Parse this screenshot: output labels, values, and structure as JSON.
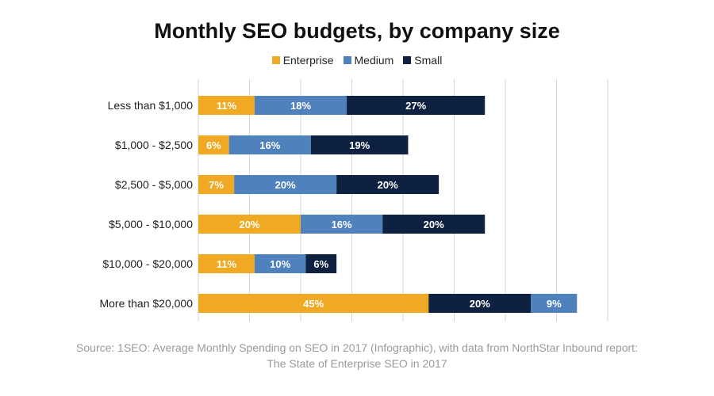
{
  "chart_data": {
    "type": "bar",
    "orientation": "horizontal",
    "stacked": true,
    "title": "Monthly SEO budgets, by company size",
    "legend": [
      {
        "name": "Enterprise",
        "color": "#EFA922"
      },
      {
        "name": "Medium",
        "color": "#4F81BD"
      },
      {
        "name": "Small",
        "color": "#0F2141"
      }
    ],
    "legend_position": "top-center",
    "categories": [
      "Less than $1,000",
      "$1,000 - $2,500",
      "$2,500 - $5,000",
      "$5,000 - $10,000",
      "$10,000 - $20,000",
      "More than $20,000"
    ],
    "rows": [
      {
        "segments": [
          {
            "series": "Enterprise",
            "value": 11,
            "label": "11%"
          },
          {
            "series": "Medium",
            "value": 18,
            "label": "18%"
          },
          {
            "series": "Small",
            "value": 27,
            "label": "27%"
          }
        ]
      },
      {
        "segments": [
          {
            "series": "Enterprise",
            "value": 6,
            "label": "6%"
          },
          {
            "series": "Medium",
            "value": 16,
            "label": "16%"
          },
          {
            "series": "Small",
            "value": 19,
            "label": "19%"
          }
        ]
      },
      {
        "segments": [
          {
            "series": "Enterprise",
            "value": 7,
            "label": "7%"
          },
          {
            "series": "Medium",
            "value": 20,
            "label": "20%"
          },
          {
            "series": "Small",
            "value": 20,
            "label": "20%"
          }
        ]
      },
      {
        "segments": [
          {
            "series": "Enterprise",
            "value": 20,
            "label": "20%"
          },
          {
            "series": "Medium",
            "value": 16,
            "label": "16%"
          },
          {
            "series": "Small",
            "value": 20,
            "label": "20%"
          }
        ]
      },
      {
        "segments": [
          {
            "series": "Enterprise",
            "value": 11,
            "label": "11%"
          },
          {
            "series": "Medium",
            "value": 10,
            "label": "10%"
          },
          {
            "series": "Small",
            "value": 6,
            "label": "6%"
          }
        ]
      },
      {
        "segments": [
          {
            "series": "Enterprise",
            "value": 45,
            "label": "45%"
          },
          {
            "series": "Small",
            "value": 20,
            "label": "20%"
          },
          {
            "series": "Medium",
            "value": 9,
            "label": "9%"
          }
        ]
      }
    ],
    "xlim": [
      0,
      80
    ],
    "grid_step": 10,
    "grid": true,
    "xlabel": "",
    "ylabel": ""
  },
  "source": {
    "line1": "Source: 1SEO: Average Monthly Spending on SEO in 2017 (Infographic), with data from NorthStar Inbound report:",
    "line2": "The State of Enterprise SEO in 2017"
  }
}
